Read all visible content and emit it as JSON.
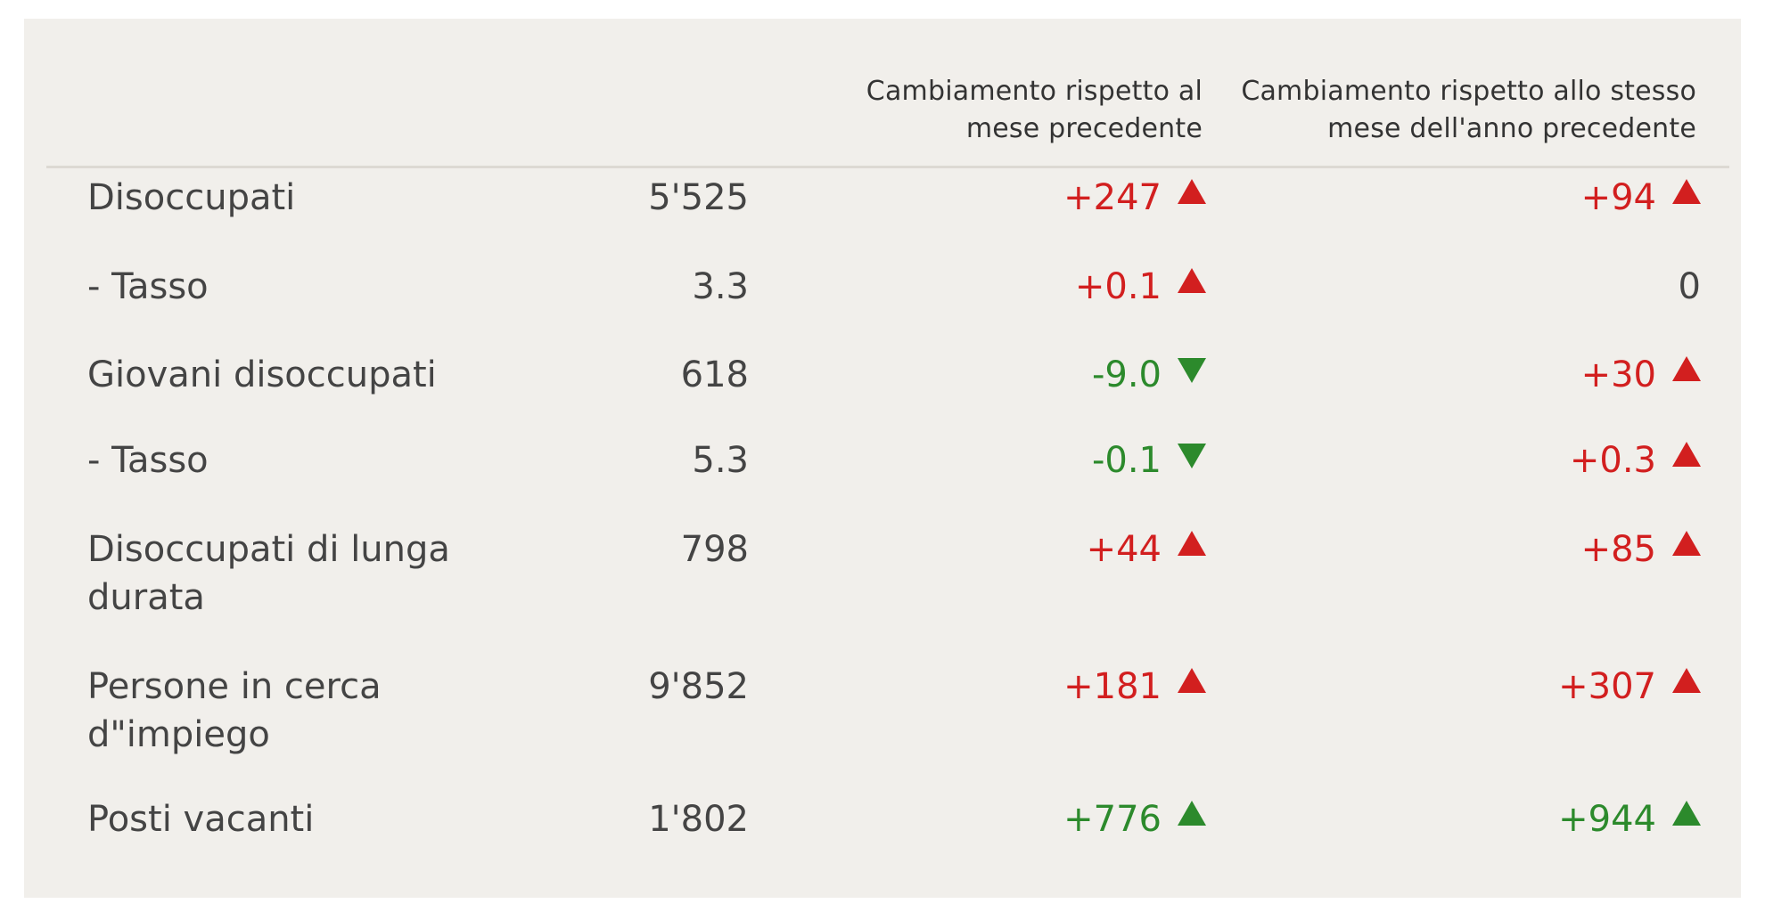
{
  "table": {
    "headers": {
      "label": "",
      "value": "",
      "mom": "Cambiamento rispetto al mese precedente",
      "yoy": "Cambiamento rispetto allo stesso mese dell'anno precedente"
    },
    "rows": [
      {
        "label": "Disoccupati",
        "value": "5'525",
        "mom": "+247",
        "mom_dir": "up",
        "mom_color": "red",
        "yoy": "+94",
        "yoy_dir": "up",
        "yoy_color": "red"
      },
      {
        "label": "- Tasso",
        "value": "3.3",
        "mom": "+0.1",
        "mom_dir": "up",
        "mom_color": "red",
        "yoy": "0",
        "yoy_dir": "none",
        "yoy_color": "neutral"
      },
      {
        "label": "Giovani disoccupati",
        "value": "618",
        "mom": "-9.0",
        "mom_dir": "down",
        "mom_color": "green",
        "yoy": "+30",
        "yoy_dir": "up",
        "yoy_color": "red"
      },
      {
        "label": "- Tasso",
        "value": "5.3",
        "mom": "-0.1",
        "mom_dir": "down",
        "mom_color": "green",
        "yoy": "+0.3",
        "yoy_dir": "up",
        "yoy_color": "red"
      },
      {
        "label": "Disoccupati di lunga durata",
        "value": "798",
        "mom": "+44",
        "mom_dir": "up",
        "mom_color": "red",
        "yoy": "+85",
        "yoy_dir": "up",
        "yoy_color": "red"
      },
      {
        "label": "Persone in cerca d\"impiego",
        "value": "9'852",
        "mom": "+181",
        "mom_dir": "up",
        "mom_color": "red",
        "yoy": "+307",
        "yoy_dir": "up",
        "yoy_color": "red"
      },
      {
        "label": "Posti vacanti",
        "value": "1'802",
        "mom": "+776",
        "mom_dir": "up",
        "mom_color": "green",
        "yoy": "+944",
        "yoy_dir": "up",
        "yoy_color": "green"
      }
    ]
  },
  "chart_data": {
    "type": "table",
    "columns": [
      "",
      "",
      "Cambiamento rispetto al mese precedente",
      "Cambiamento rispetto allo stesso mese dell'anno precedente"
    ],
    "rows": [
      [
        "Disoccupati",
        "5'525",
        "+247",
        "+94"
      ],
      [
        "- Tasso",
        "3.3",
        "+0.1",
        "0"
      ],
      [
        "Giovani disoccupati",
        "618",
        "-9.0",
        "+30"
      ],
      [
        "- Tasso",
        "5.3",
        "-0.1",
        "+0.3"
      ],
      [
        "Disoccupati di lunga durata",
        "798",
        "+44",
        "+85"
      ],
      [
        "Persone in cerca d\"impiego",
        "9'852",
        "+181",
        "+307"
      ],
      [
        "Posti vacanti",
        "1'802",
        "+776",
        "+944"
      ]
    ]
  },
  "colors": {
    "panel_bg": "#f1efeb",
    "red": "#d21f1f",
    "green": "#2c8a2c",
    "text": "#444444"
  }
}
